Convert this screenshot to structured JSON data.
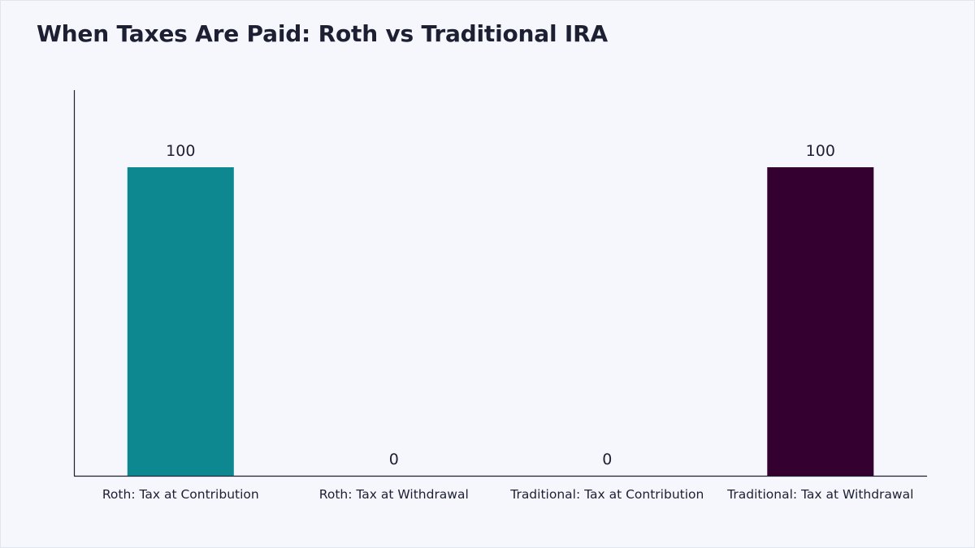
{
  "chart_data": {
    "type": "bar",
    "title": "When Taxes Are Paid: Roth vs Traditional IRA",
    "categories": [
      "Roth: Tax at Contribution",
      "Roth: Tax at Withdrawal",
      "Traditional: Tax at Contribution",
      "Traditional: Tax at Withdrawal"
    ],
    "values": [
      100,
      0,
      0,
      100
    ],
    "data_labels": [
      "100",
      "0",
      "0",
      "100"
    ],
    "colors": [
      "#0d8790",
      "#0d8790",
      "#33002f",
      "#33002f"
    ],
    "xlabel": "",
    "ylabel": "",
    "ylim": [
      0,
      125
    ],
    "grid": false,
    "legend": "none"
  }
}
